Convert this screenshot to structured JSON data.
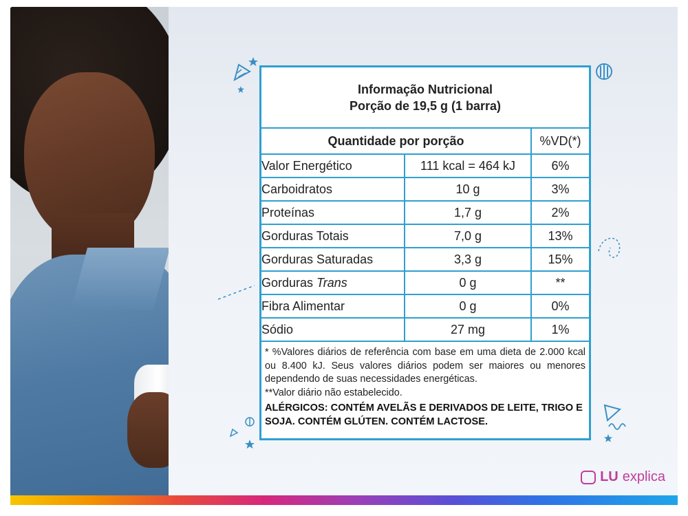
{
  "panel": {
    "title_line1": "Informação Nutricional",
    "title_line2": "Porção de 19,5 g (1 barra)",
    "header_quantity": "Quantidade por porção",
    "header_vd": "%VD(*)",
    "rows": [
      {
        "name": "Valor Energético",
        "amount": "111 kcal = 464 kJ",
        "vd": "6%"
      },
      {
        "name": "Carboidratos",
        "amount": "10 g",
        "vd": "3%"
      },
      {
        "name": "Proteínas",
        "amount": "1,7 g",
        "vd": "2%"
      },
      {
        "name": "Gorduras Totais",
        "amount": "7,0 g",
        "vd": "13%"
      },
      {
        "name": "Gorduras Saturadas",
        "amount": "3,3 g",
        "vd": "15%"
      },
      {
        "name": "Gorduras ",
        "name_italic": "Trans",
        "amount": "0 g",
        "vd": "**"
      },
      {
        "name": "Fibra Alimentar",
        "amount": "0 g",
        "vd": "0%"
      },
      {
        "name": "Sódio",
        "amount": "27 mg",
        "vd": "1%"
      }
    ],
    "footnote1": "* %Valores diários de referência com base em uma dieta de 2.000 kcal ou 8.400 kJ. Seus valores diários podem ser maiores ou menores dependendo de suas necessidades energéticas.",
    "footnote2": "**Valor diário não estabelecido.",
    "allergens": "ALÉRGICOS: CONTÉM AVELÃS E DERIVADOS DE LEITE, TRIGO E SOJA. CONTÉM GLÚTEN. CONTÉM LACTOSE."
  },
  "brand": {
    "lu": "LU",
    "text": "explica",
    "color": "#c03e9a"
  },
  "colors": {
    "table_border": "#2f9fd0",
    "decoration": "#3a8fc4"
  }
}
